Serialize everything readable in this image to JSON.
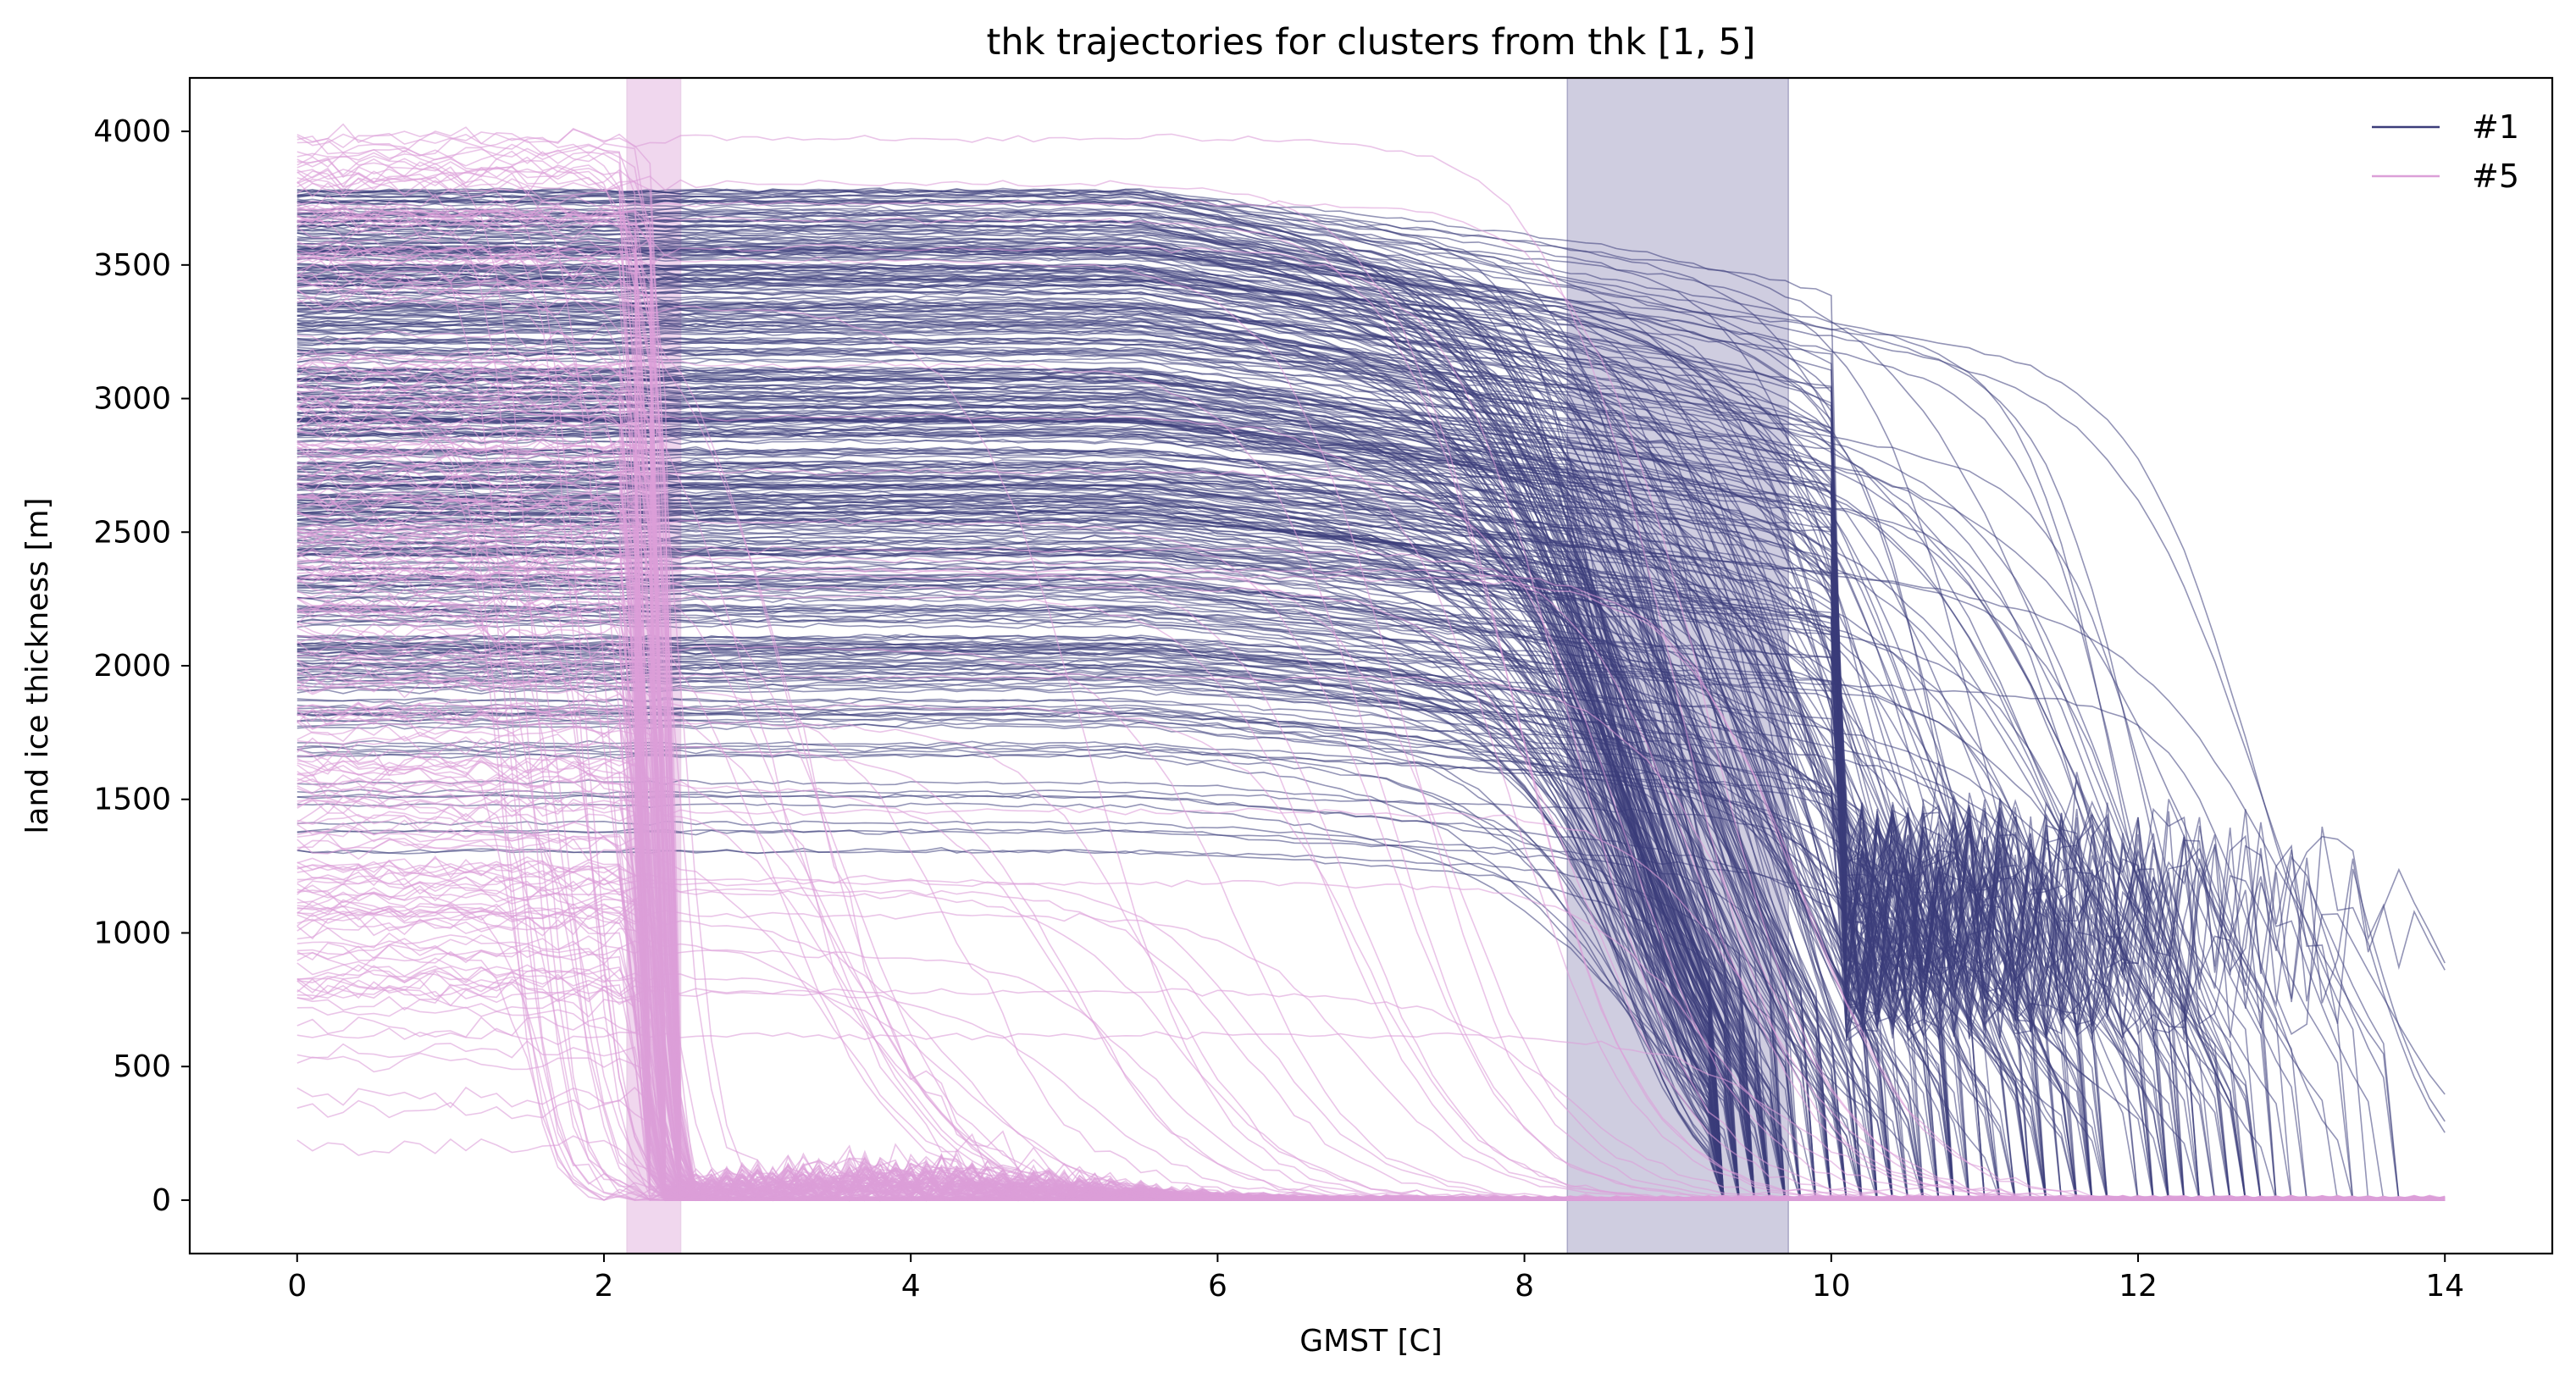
{
  "chart_data": {
    "type": "line",
    "title": "thk trajectories for clusters from thk [1, 5]",
    "xlabel": "GMST [C]",
    "ylabel": "land ice thickness [m]",
    "xlim": [
      -0.7,
      14.7
    ],
    "ylim": [
      -200,
      4200
    ],
    "xticks": [
      0,
      2,
      4,
      6,
      8,
      10,
      12,
      14
    ],
    "yticks": [
      0,
      500,
      1000,
      1500,
      2000,
      2500,
      3000,
      3500,
      4000
    ],
    "grid": false,
    "legend_position": "top-right",
    "shaded_bands": [
      {
        "series": "#5",
        "x": [
          2.15,
          2.5
        ],
        "color": "#f0d7ee"
      },
      {
        "series": "#1",
        "x": [
          8.28,
          9.72
        ],
        "color": "#cfcde0"
      }
    ],
    "series": [
      {
        "name": "#1",
        "color": "#3b3d7a",
        "count": 420,
        "description_values": {
          "start_thickness_range": [
            1300,
            3780
          ],
          "plateau_until_x": [
            5.5,
            6.8
          ],
          "collapse_to_zero_x": [
            8.6,
            13.9
          ]
        }
      },
      {
        "name": "#5",
        "color": "#dc9fd8",
        "count": 260,
        "description_values": {
          "start_thickness_range": [
            200,
            4000
          ],
          "collapse_x": [
            2.2,
            2.45
          ]
        }
      }
    ]
  }
}
